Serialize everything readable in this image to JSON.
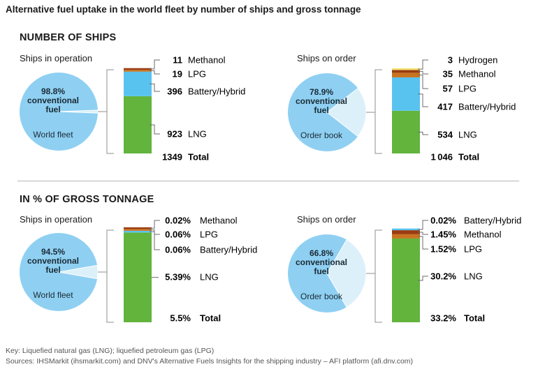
{
  "title": "Alternative fuel uptake in the world fleet by number of ships and gross tonnage",
  "sections": {
    "ships": "NUMBER OF SHIPS",
    "tonnage": "IN % OF GROSS TONNAGE"
  },
  "colors": {
    "pie": "#8fd0f2",
    "pie_light": "#dcf0fa",
    "LNG": "#62b43d",
    "Battery/Hybrid": "#59c3ef",
    "LPG": "#c8731f",
    "Methanol": "#9a3b10",
    "Hydrogen": "#f5e16e",
    "bracket": "#8f8f8f"
  },
  "footer": {
    "key": "Key: Liquefied natural gas (LNG); liquefied petroleum gas (LPG)",
    "sources": "Sources: IHSMarkit (ihsmarkit.com) and DNV's Alternative Fuels Insights for the shipping industry – AFI platform (afi.dnv.com)"
  },
  "chart_data": [
    {
      "type": "pie+stacked-bar",
      "section": "NUMBER OF SHIPS",
      "subtitle": "Ships in operation",
      "pie": {
        "conventional_pct": 98.8,
        "label_pct": "98.8%",
        "label_text": "conventional fuel",
        "label_name": "World fleet"
      },
      "bar": {
        "segments": [
          {
            "name": "LNG",
            "value": 923,
            "label": "923"
          },
          {
            "name": "Battery/Hybrid",
            "value": 396,
            "label": "396"
          },
          {
            "name": "LPG",
            "value": 19,
            "label": "19"
          },
          {
            "name": "Methanol",
            "value": 11,
            "label": "11"
          }
        ],
        "total_label": "1349",
        "total_text": "Total"
      }
    },
    {
      "type": "pie+stacked-bar",
      "section": "NUMBER OF SHIPS",
      "subtitle": "Ships on order",
      "pie": {
        "conventional_pct": 78.9,
        "label_pct": "78.9%",
        "label_text": "conventional fuel",
        "label_name": "Order book"
      },
      "bar": {
        "segments": [
          {
            "name": "LNG",
            "value": 534,
            "label": "534"
          },
          {
            "name": "Battery/Hybrid",
            "value": 417,
            "label": "417"
          },
          {
            "name": "LPG",
            "value": 57,
            "label": "57"
          },
          {
            "name": "Methanol",
            "value": 35,
            "label": "35"
          },
          {
            "name": "Hydrogen",
            "value": 3,
            "label": "3"
          }
        ],
        "total_label": "1 046",
        "total_text": "Total"
      }
    },
    {
      "type": "pie+stacked-bar",
      "section": "IN % OF GROSS TONNAGE",
      "subtitle": "Ships in operation",
      "pie": {
        "conventional_pct": 94.5,
        "label_pct": "94.5%",
        "label_text": "conventional fuel",
        "label_name": "World fleet"
      },
      "bar": {
        "segments": [
          {
            "name": "LNG",
            "value": 5.39,
            "label": "5.39%"
          },
          {
            "name": "Battery/Hybrid",
            "value": 0.06,
            "label": "0.06%"
          },
          {
            "name": "LPG",
            "value": 0.06,
            "label": "0.06%"
          },
          {
            "name": "Methanol",
            "value": 0.02,
            "label": "0.02%"
          }
        ],
        "total_label": "5.5%",
        "total_text": "Total"
      }
    },
    {
      "type": "pie+stacked-bar",
      "section": "IN % OF GROSS TONNAGE",
      "subtitle": "Ships on order",
      "pie": {
        "conventional_pct": 66.8,
        "label_pct": "66.8%",
        "label_text": "conventional fuel",
        "label_name": "Order book"
      },
      "bar": {
        "segments": [
          {
            "name": "LNG",
            "value": 30.2,
            "label": "30.2%"
          },
          {
            "name": "LPG",
            "value": 1.52,
            "label": "1.52%"
          },
          {
            "name": "Methanol",
            "value": 1.45,
            "label": "1.45%"
          },
          {
            "name": "Battery/Hybrid",
            "value": 0.02,
            "label": "0.02%"
          }
        ],
        "total_label": "33.2%",
        "total_text": "Total"
      }
    }
  ]
}
